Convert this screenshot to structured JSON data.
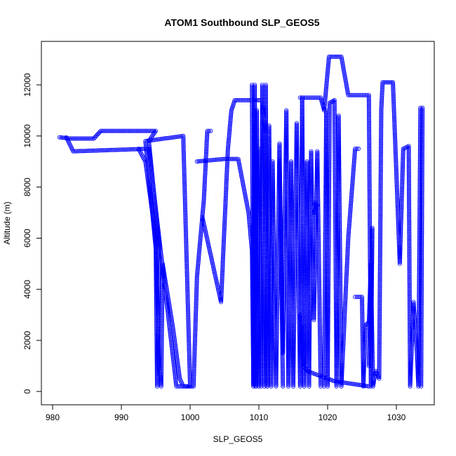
{
  "chart_data": {
    "type": "scatter",
    "title": "ATOM1 Southbound SLP_GEOS5",
    "xlabel": "SLP_GEOS5",
    "ylabel": "Altitude (m)",
    "xlim": [
      980,
      1035
    ],
    "ylim": [
      0,
      13000
    ],
    "xticks": [
      980,
      990,
      1000,
      1010,
      1020,
      1030
    ],
    "yticks": [
      0,
      2000,
      4000,
      6000,
      8000,
      10000,
      12000
    ],
    "grid": false,
    "point_style": "open-circle",
    "line_overlay": true,
    "color": "#0000ff",
    "series": [
      {
        "points": [
          [
            981.0,
            9950
          ],
          [
            982.5,
            9900
          ],
          [
            986.0,
            9900
          ],
          [
            987.0,
            10200
          ],
          [
            995.0,
            10200
          ],
          [
            994.0,
            9800
          ],
          [
            995.5,
            5700
          ],
          [
            995.2,
            200
          ],
          [
            995.0,
            5600
          ],
          [
            993.5,
            9800
          ],
          [
            999.0,
            10000
          ],
          [
            1000.0,
            200
          ],
          [
            999.0,
            200
          ],
          [
            998.0,
            200
          ],
          [
            994.0,
            9500
          ],
          [
            983.0,
            9400
          ],
          [
            982.0,
            9950
          ]
        ]
      },
      {
        "points": [
          [
            992.5,
            9500
          ],
          [
            993.5,
            9000
          ],
          [
            995.0,
            6000
          ],
          [
            995.5,
            1000
          ],
          [
            995.8,
            200
          ],
          [
            996.0,
            5000
          ],
          [
            997.5,
            2500
          ],
          [
            998.5,
            500
          ],
          [
            999.0,
            200
          ],
          [
            1000.5,
            200
          ],
          [
            1001.0,
            4500
          ],
          [
            1002.0,
            7500
          ],
          [
            1002.5,
            10200
          ],
          [
            1003.0,
            10200
          ]
        ]
      },
      {
        "points": [
          [
            1001.0,
            9000
          ],
          [
            1005.0,
            9100
          ],
          [
            1007.0,
            9100
          ],
          [
            1008.5,
            7000
          ],
          [
            1009.0,
            5500
          ],
          [
            1009.2,
            300
          ],
          [
            1009.3,
            10400
          ],
          [
            1009.5,
            200
          ],
          [
            1009.7,
            11000
          ],
          [
            1010.0,
            200
          ]
        ]
      },
      {
        "points": [
          [
            1001.8,
            6800
          ],
          [
            1004.5,
            3500
          ],
          [
            1005.0,
            6500
          ],
          [
            1005.5,
            9500
          ],
          [
            1006.0,
            11000
          ],
          [
            1006.5,
            11400
          ],
          [
            1009.5,
            11400
          ],
          [
            1010.5,
            11400
          ],
          [
            1011.0,
            10000
          ],
          [
            1011.2,
            200
          ]
        ]
      },
      {
        "points": [
          [
            1009.0,
            12000
          ],
          [
            1009.2,
            200
          ],
          [
            1009.4,
            12000
          ],
          [
            1009.6,
            200
          ],
          [
            1010.0,
            9500
          ],
          [
            1010.3,
            200
          ],
          [
            1010.5,
            12000
          ],
          [
            1010.8,
            200
          ],
          [
            1011.0,
            12000
          ],
          [
            1011.2,
            200
          ],
          [
            1011.5,
            10400
          ],
          [
            1011.8,
            200
          ],
          [
            1012.0,
            9000
          ],
          [
            1012.5,
            200
          ],
          [
            1013.0,
            9700
          ],
          [
            1013.5,
            200
          ]
        ]
      },
      {
        "points": [
          [
            1013.0,
            9000
          ],
          [
            1013.5,
            1500
          ],
          [
            1014.0,
            11000
          ],
          [
            1014.3,
            200
          ],
          [
            1014.7,
            9000
          ],
          [
            1015.0,
            200
          ],
          [
            1015.5,
            10500
          ],
          [
            1016.0,
            200
          ],
          [
            1016.3,
            11500
          ],
          [
            1016.6,
            200
          ],
          [
            1017.0,
            9000
          ],
          [
            1017.3,
            200
          ],
          [
            1017.6,
            9400
          ],
          [
            1018.0,
            2800
          ],
          [
            1018.5,
            9400
          ],
          [
            1019.0,
            200
          ]
        ]
      },
      {
        "points": [
          [
            1016.0,
            11500
          ],
          [
            1019.0,
            11500
          ],
          [
            1019.5,
            11000
          ],
          [
            1020.0,
            12500
          ],
          [
            1020.2,
            13100
          ],
          [
            1022.0,
            13100
          ],
          [
            1023.0,
            11600
          ],
          [
            1026.0,
            11600
          ],
          [
            1026.3,
            200
          ],
          [
            1026.5,
            6400
          ],
          [
            1026.0,
            1000
          ]
        ]
      },
      {
        "points": [
          [
            1019.5,
            200
          ],
          [
            1019.8,
            11000
          ],
          [
            1020.0,
            200
          ],
          [
            1020.3,
            11300
          ],
          [
            1021.0,
            11400
          ],
          [
            1021.3,
            200
          ],
          [
            1021.6,
            10800
          ],
          [
            1022.0,
            200
          ],
          [
            1023.0,
            6000
          ],
          [
            1024.0,
            9500
          ],
          [
            1024.5,
            9500
          ]
        ]
      },
      {
        "points": [
          [
            1024.0,
            3700
          ],
          [
            1025.0,
            3700
          ],
          [
            1025.2,
            200
          ],
          [
            1025.5,
            2600
          ],
          [
            1026.0,
            2700
          ],
          [
            1026.3,
            5000
          ],
          [
            1026.6,
            200
          ],
          [
            1027.0,
            800
          ],
          [
            1027.5,
            500
          ],
          [
            1027.8,
            11000
          ],
          [
            1028.0,
            12100
          ],
          [
            1029.5,
            12100
          ],
          [
            1030.5,
            5000
          ],
          [
            1031.0,
            9500
          ],
          [
            1031.8,
            9600
          ],
          [
            1032.0,
            200
          ],
          [
            1032.5,
            3500
          ],
          [
            1033.0,
            1500
          ],
          [
            1033.2,
            200
          ],
          [
            1033.5,
            11100
          ],
          [
            1033.8,
            11100
          ],
          [
            1033.6,
            200
          ]
        ]
      },
      {
        "points": [
          [
            1016.0,
            3000
          ],
          [
            1016.5,
            1000
          ],
          [
            1017.0,
            800
          ],
          [
            1021.0,
            400
          ],
          [
            1026.0,
            200
          ]
        ]
      },
      {
        "points": [
          [
            1018.0,
            7400
          ],
          [
            1018.3,
            7200
          ],
          [
            1018.0,
            7000
          ],
          [
            1018.5,
            7300
          ]
        ]
      }
    ]
  }
}
